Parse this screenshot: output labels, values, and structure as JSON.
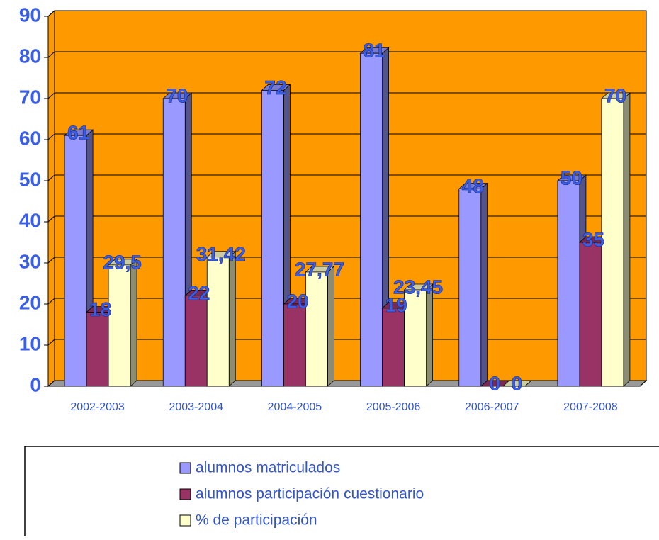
{
  "chart_data": {
    "type": "bar3d",
    "categories": [
      "2002-2003",
      "2003-2004",
      "2004-2005",
      "2005-2006",
      "2006-2007",
      "2007-2008"
    ],
    "series": [
      {
        "name": "alumnos matriculados",
        "color": "#9999ff",
        "values": [
          61,
          70,
          72,
          81,
          48,
          50
        ]
      },
      {
        "name": "alumnos participación cuestionario",
        "color": "#993366",
        "values": [
          18,
          22,
          20,
          19,
          0,
          35
        ]
      },
      {
        "name": "% de participación",
        "color": "#ffffcc",
        "values": [
          29.5,
          31.42,
          27.77,
          23.45,
          0,
          70
        ],
        "value_labels": [
          "29,5",
          "31,42",
          "27,77",
          "23,45",
          "0",
          "70"
        ]
      }
    ],
    "ylim": [
      0,
      90
    ],
    "yticks": [
      0,
      10,
      20,
      30,
      40,
      50,
      60,
      70,
      80,
      90
    ],
    "grid": true,
    "wall_color": "#ff9900",
    "floor_color": "#999999",
    "legend": "bottom"
  }
}
